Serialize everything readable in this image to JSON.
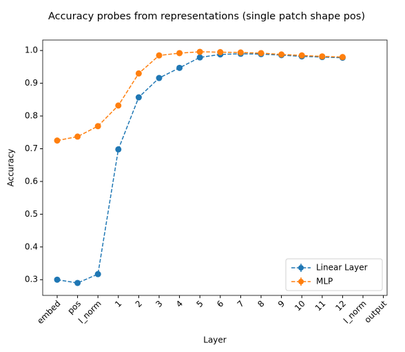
{
  "chart_data": {
    "type": "line",
    "title": "Accuracy probes from representations (single patch shape pos)",
    "x_label": "Layer",
    "y_label": "Accuracy",
    "categories": [
      "embed",
      "pos",
      "l_norm",
      "1",
      "2",
      "3",
      "4",
      "5",
      "6",
      "7",
      "8",
      "9",
      "10",
      "11",
      "12",
      "l_norm",
      "output"
    ],
    "series": [
      {
        "name": "Linear Layer",
        "color": "#1f77b4",
        "values": [
          0.3,
          0.29,
          0.317,
          0.698,
          0.857,
          0.916,
          0.947,
          0.979,
          0.988,
          0.99,
          0.989,
          0.986,
          0.982,
          0.98,
          0.978,
          null,
          null
        ]
      },
      {
        "name": "MLP",
        "color": "#ff7f0e",
        "values": [
          0.725,
          0.737,
          0.769,
          0.832,
          0.93,
          0.985,
          0.992,
          0.996,
          0.995,
          0.994,
          0.992,
          0.988,
          0.985,
          0.982,
          0.98,
          null,
          null
        ]
      }
    ],
    "ylim": [
      0.252,
      1.032
    ],
    "yticks": [
      0.3,
      0.4,
      0.5,
      0.6,
      0.7,
      0.8,
      0.9,
      {
        "value": 1,
        "label": "1.0"
      }
    ],
    "legend": "lower right"
  }
}
